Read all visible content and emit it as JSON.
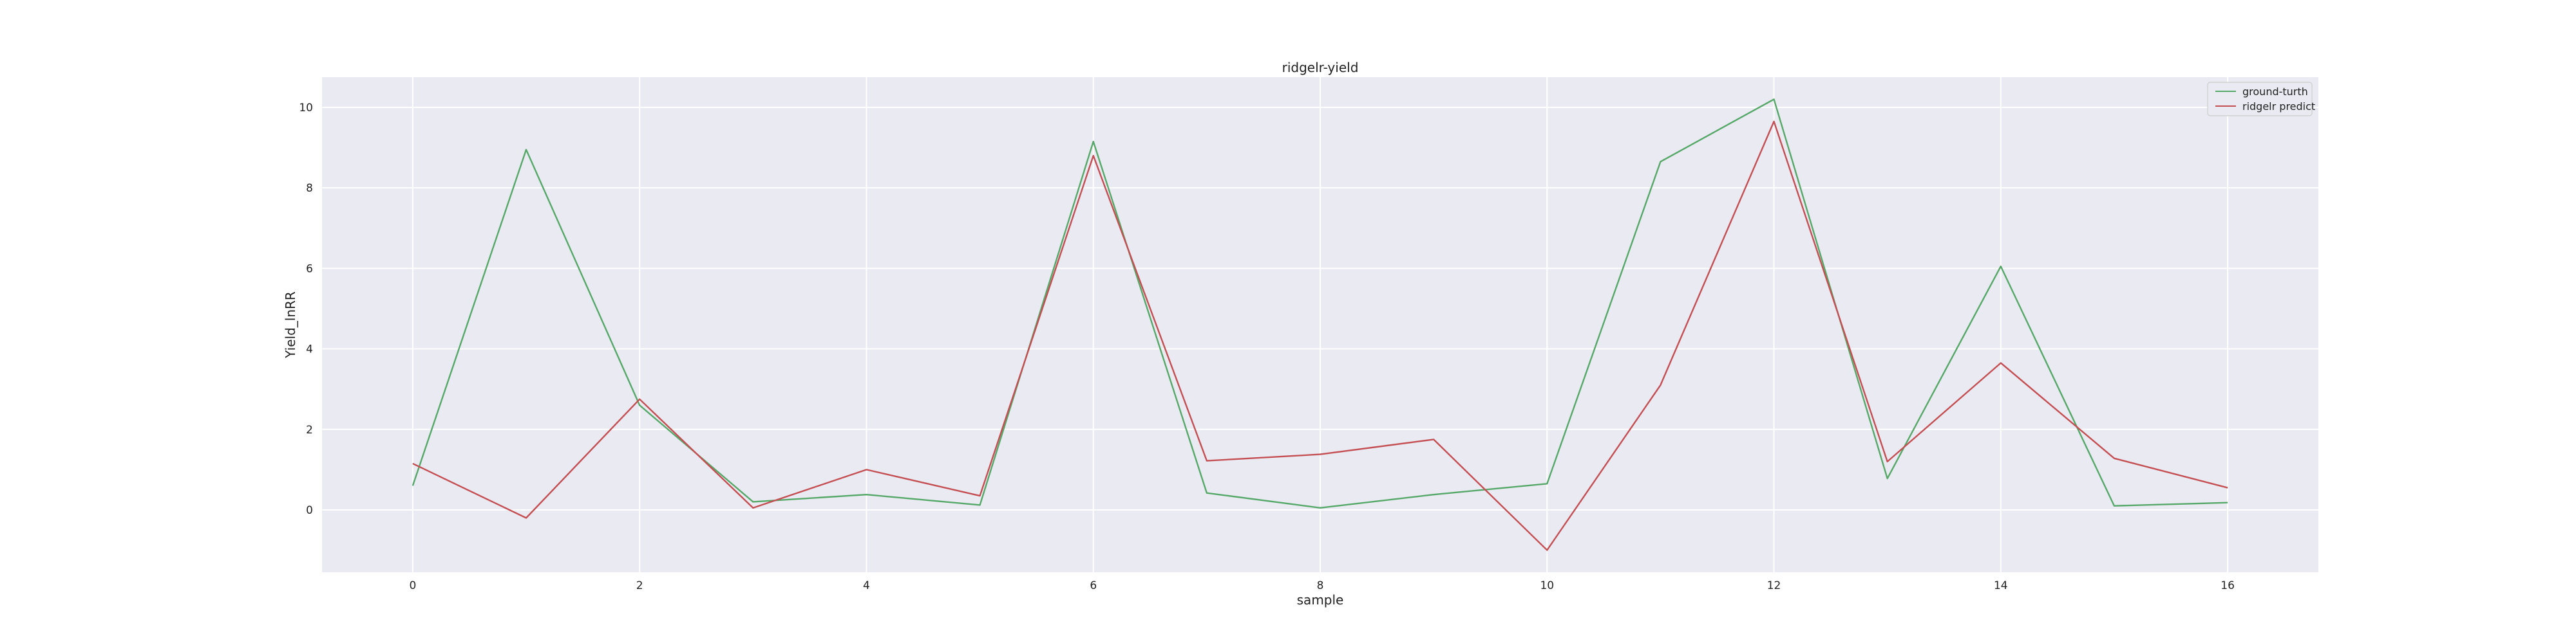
{
  "chart_data": {
    "type": "line",
    "title": "ridgelr-yield",
    "xlabel": "sample",
    "ylabel": "Yield_lnRR",
    "x": [
      0,
      1,
      2,
      3,
      4,
      5,
      6,
      7,
      8,
      9,
      10,
      11,
      12,
      13,
      14,
      15,
      16
    ],
    "xlim": [
      -0.8,
      16.8
    ],
    "ylim": [
      -1.55,
      10.75
    ],
    "x_ticks": [
      0,
      2,
      4,
      6,
      8,
      10,
      12,
      14,
      16
    ],
    "y_ticks": [
      0,
      2,
      4,
      6,
      8,
      10
    ],
    "grid": true,
    "legend_position": "top-right",
    "background_color": "#eaeaf2",
    "series": [
      {
        "name": "ground-turth",
        "color": "#55a868",
        "values": [
          0.6,
          8.95,
          2.6,
          0.2,
          0.38,
          0.12,
          9.15,
          0.42,
          0.05,
          0.38,
          0.65,
          8.65,
          10.2,
          0.78,
          6.05,
          0.1,
          0.18
        ]
      },
      {
        "name": "ridgelr predict",
        "color": "#c44e52",
        "values": [
          1.15,
          -0.2,
          2.75,
          0.05,
          1.0,
          0.35,
          8.8,
          1.22,
          1.38,
          1.75,
          -1.0,
          3.1,
          9.65,
          1.2,
          3.65,
          1.28,
          0.55
        ]
      }
    ]
  }
}
